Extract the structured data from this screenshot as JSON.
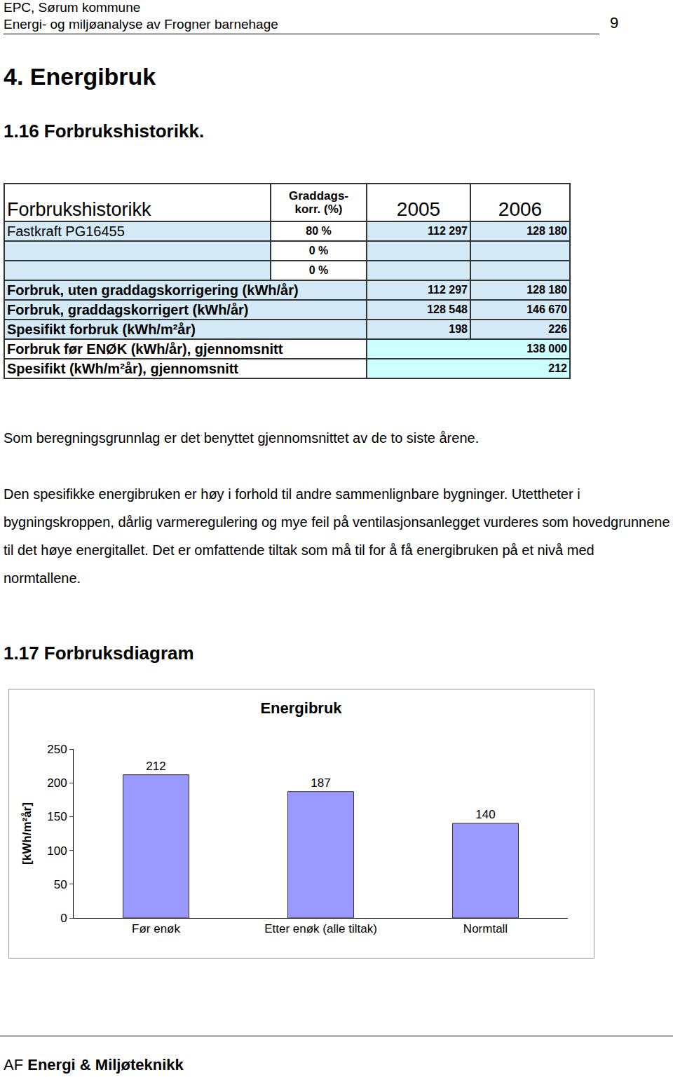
{
  "header": {
    "line1": "EPC, Sørum kommune",
    "line2": "Energi- og miljøanalyse av Frogner barnehage",
    "page": "9"
  },
  "heading": "4. Energibruk",
  "section1": "1.16 Forbrukshistorikk.",
  "table": {
    "header": {
      "label": "Forbrukshistorikk",
      "graddag": [
        "Graddags-",
        "korr. (%)"
      ],
      "years": [
        "2005",
        "2006"
      ]
    },
    "rows": [
      [
        "Fastkraft PG16455",
        "80 %",
        "112 297",
        "128 180"
      ],
      [
        null,
        "0 %",
        null,
        null
      ],
      [
        null,
        "0 %",
        null,
        null
      ],
      [
        "Forbruk, uten graddagskorrigering (kWh/år)",
        "112 297",
        "128 180"
      ],
      [
        "Forbruk, graddagskorrigert (kWh/år)",
        "128 548",
        "146 670"
      ],
      [
        "Spesifikt forbruk (kWh/m²år)",
        "198",
        "226"
      ],
      [
        "Forbruk før ENØK (kWh/år), gjennomsnitt",
        "138 000"
      ],
      [
        "Spesifikt (kWh/m²år), gjennomsnitt",
        "212"
      ]
    ]
  },
  "paragraphs": [
    "Som beregningsgrunnlag er det benyttet gjennomsnittet av de to siste årene.",
    "Den spesifikke energibruken er høy i forhold til andre sammenlignbare bygninger. Utettheter i bygningskroppen, dårlig varmeregulering og mye feil på ventilasjonsanlegget vurderes som hovedgrunnene til det høye energitallet. Det er omfattende tiltak som må til for å få energibruken på et nivå med normtallene."
  ],
  "section2": "1.17 Forbruksdiagram",
  "chart_data": {
    "type": "bar",
    "title": "Energibruk",
    "y_label": "[kWh/m²år]",
    "categories": [
      "Før enøk",
      "Etter enøk (alle tiltak)",
      "Normtall"
    ],
    "values": [
      212,
      187,
      140
    ],
    "color": "#9999ff",
    "ylim": [
      0,
      250
    ],
    "yticks": [
      0,
      50,
      100,
      150,
      200,
      250
    ],
    "grid": false,
    "data_labels": true
  },
  "footer": {
    "prefix": "AF",
    "text": "Energi & Miljøteknikk"
  }
}
